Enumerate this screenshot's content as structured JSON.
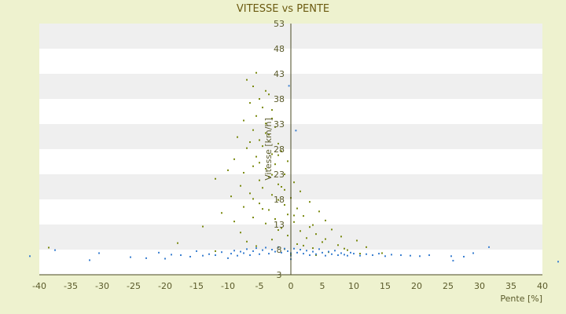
{
  "chart_data": {
    "type": "scatter",
    "title": "VITESSE vs PENTE",
    "xlabel": "Pente [%]",
    "ylabel": "Vitesse [km/h]",
    "xlim": [
      -40,
      40
    ],
    "ylim": [
      3,
      53
    ],
    "x_ticks": [
      "-40",
      "-35",
      "-30",
      "-25",
      "-20",
      "-15",
      "-10",
      "-5",
      "0",
      "5",
      "10",
      "15",
      "20",
      "25",
      "30",
      "35",
      "40"
    ],
    "y_ticks": [
      "3",
      "8",
      "13",
      "18",
      "23",
      "28",
      "33",
      "38",
      "43",
      "48",
      "53"
    ],
    "grid": "horizontal bands",
    "colors": {
      "background": "#eef2cf",
      "band_light": "#ffffff",
      "band_dark": "#efefef",
      "series_high": "#7a8a10",
      "series_low": "#3a7fd0",
      "axis": "#4a4a20"
    },
    "series": [
      {
        "color": "#7a8a10",
        "points": [
          [
            -5.5,
            43.2
          ],
          [
            -7,
            41.8
          ],
          [
            -6,
            40.5
          ],
          [
            -4,
            39.6
          ],
          [
            -3.5,
            38.9
          ],
          [
            -5,
            38
          ],
          [
            -6.5,
            37.2
          ],
          [
            -4.5,
            36.3
          ],
          [
            -3,
            35.8
          ],
          [
            -5.5,
            34.6
          ],
          [
            -7.5,
            33.7
          ],
          [
            -4,
            33.1
          ],
          [
            -2.5,
            32.4
          ],
          [
            -6,
            31.8
          ],
          [
            -3.5,
            30.9
          ],
          [
            -8.5,
            30.4
          ],
          [
            -5,
            29.8
          ],
          [
            -2,
            29.1
          ],
          [
            -4.5,
            28.6
          ],
          [
            -7,
            28.2
          ],
          [
            -1.5,
            27.6
          ],
          [
            -3,
            27
          ],
          [
            -5.5,
            26.5
          ],
          [
            -9,
            26
          ],
          [
            -0.5,
            25.6
          ],
          [
            -2.5,
            25
          ],
          [
            -6,
            24.6
          ],
          [
            -4,
            24.1
          ],
          [
            -10,
            23.8
          ],
          [
            -7.5,
            23.3
          ],
          [
            -1,
            23
          ],
          [
            -3.5,
            22.5
          ],
          [
            -12,
            22.1
          ],
          [
            -5,
            21.8
          ],
          [
            0.5,
            21.4
          ],
          [
            -2,
            21
          ],
          [
            -8,
            20.7
          ],
          [
            -4.5,
            20.3
          ],
          [
            -1,
            19.9
          ],
          [
            1.5,
            19.6
          ],
          [
            -6.5,
            19.2
          ],
          [
            -3,
            18.9
          ],
          [
            -9.5,
            18.6
          ],
          [
            0,
            18.3
          ],
          [
            -2,
            17.9
          ],
          [
            3,
            17.5
          ],
          [
            -5,
            17.2
          ],
          [
            -1,
            16.9
          ],
          [
            -7.5,
            16.5
          ],
          [
            1,
            16.2
          ],
          [
            -3.5,
            15.9
          ],
          [
            4.5,
            15.6
          ],
          [
            -11,
            15.3
          ],
          [
            -0.5,
            15
          ],
          [
            2,
            14.7
          ],
          [
            -6,
            14.4
          ],
          [
            -2.5,
            14.1
          ],
          [
            5.5,
            13.8
          ],
          [
            0.5,
            13.5
          ],
          [
            -4,
            13.2
          ],
          [
            3.5,
            12.9
          ],
          [
            -14,
            12.6
          ],
          [
            -1.5,
            12.3
          ],
          [
            6.5,
            12
          ],
          [
            1.5,
            11.7
          ],
          [
            -8,
            11.4
          ],
          [
            4,
            11.1
          ],
          [
            -0.5,
            10.8
          ],
          [
            8,
            10.6
          ],
          [
            2.5,
            10.3
          ],
          [
            -3,
            10
          ],
          [
            10.5,
            9.8
          ],
          [
            5,
            9.5
          ],
          [
            -18,
            9.3
          ],
          [
            1,
            9.1
          ],
          [
            7.5,
            8.9
          ],
          [
            -5.5,
            8.7
          ],
          [
            12,
            8.5
          ],
          [
            3.5,
            8.3
          ],
          [
            -1,
            8.1
          ],
          [
            9,
            7.9
          ],
          [
            -12,
            7.7
          ],
          [
            6,
            7.5
          ],
          [
            14.5,
            7.3
          ],
          [
            0,
            7.1
          ],
          [
            4,
            6.9
          ],
          [
            -38.5,
            8.4
          ],
          [
            11,
            7.2
          ],
          [
            2,
            8.8
          ],
          [
            -7,
            9.6
          ],
          [
            8.5,
            8.2
          ],
          [
            5.5,
            10.1
          ],
          [
            -2,
            11.9
          ],
          [
            3,
            12.5
          ],
          [
            -9,
            13.6
          ],
          [
            0.5,
            14.8
          ],
          [
            -4.5,
            16.1
          ],
          [
            -6,
            18.1
          ],
          [
            -1.5,
            20.5
          ],
          [
            -3,
            22.9
          ],
          [
            -5,
            25.3
          ],
          [
            -2,
            26.8
          ],
          [
            -6.5,
            29.4
          ],
          [
            -4,
            31.2
          ],
          [
            -3,
            34.1
          ]
        ]
      },
      {
        "color": "#3a7fd0",
        "points": [
          [
            -41.5,
            6.7
          ],
          [
            -37.5,
            7.9
          ],
          [
            -32,
            5.9
          ],
          [
            -30.5,
            7.3
          ],
          [
            -25.5,
            6.5
          ],
          [
            -23,
            6.3
          ],
          [
            -21,
            7.4
          ],
          [
            -20,
            6.2
          ],
          [
            -19,
            7
          ],
          [
            -17.5,
            6.9
          ],
          [
            -16,
            6.6
          ],
          [
            -15,
            7.7
          ],
          [
            -14,
            6.8
          ],
          [
            -13,
            7.1
          ],
          [
            -12,
            6.9
          ],
          [
            -11,
            7.5
          ],
          [
            -10,
            6.3
          ],
          [
            -9.5,
            7.2
          ],
          [
            -9,
            7.8
          ],
          [
            -8.5,
            6.8
          ],
          [
            -8,
            7.6
          ],
          [
            -7.5,
            7.3
          ],
          [
            -7,
            8.1
          ],
          [
            -6.5,
            6.9
          ],
          [
            -6,
            7.7
          ],
          [
            -5.5,
            8.3
          ],
          [
            -5,
            7.1
          ],
          [
            -4.5,
            7.9
          ],
          [
            -4,
            8.4
          ],
          [
            -3.5,
            7.2
          ],
          [
            -3,
            8
          ],
          [
            -2.5,
            7.6
          ],
          [
            -2,
            8.5
          ],
          [
            -1.5,
            7.4
          ],
          [
            -1,
            8.2
          ],
          [
            -0.5,
            7.7
          ],
          [
            0,
            7.3
          ],
          [
            0,
            6.8
          ],
          [
            0,
            6.1
          ],
          [
            0.5,
            8.2
          ],
          [
            1,
            7.4
          ],
          [
            1.5,
            8
          ],
          [
            2,
            7.2
          ],
          [
            2.5,
            7.8
          ],
          [
            3,
            6.9
          ],
          [
            3.5,
            7.6
          ],
          [
            4,
            7.1
          ],
          [
            4.5,
            8.1
          ],
          [
            5,
            7.4
          ],
          [
            5.5,
            6.8
          ],
          [
            6,
            7.6
          ],
          [
            6.5,
            7.1
          ],
          [
            7,
            7.8
          ],
          [
            7.5,
            6.9
          ],
          [
            8,
            7.3
          ],
          [
            8.5,
            7
          ],
          [
            9,
            6.8
          ],
          [
            9.5,
            7.4
          ],
          [
            10,
            7.2
          ],
          [
            11,
            6.8
          ],
          [
            12,
            7.1
          ],
          [
            13,
            6.9
          ],
          [
            14,
            7.2
          ],
          [
            15,
            6.7
          ],
          [
            16,
            7
          ],
          [
            17.5,
            6.9
          ],
          [
            19,
            6.8
          ],
          [
            20.5,
            6.7
          ],
          [
            22,
            6.9
          ],
          [
            25.5,
            6.7
          ],
          [
            25.8,
            5.8
          ],
          [
            27.5,
            6.6
          ],
          [
            29,
            7.3
          ],
          [
            31.5,
            8.5
          ],
          [
            42.5,
            5.6
          ],
          [
            -0.3,
            40.6
          ],
          [
            0.8,
            31.7
          ]
        ]
      }
    ]
  }
}
